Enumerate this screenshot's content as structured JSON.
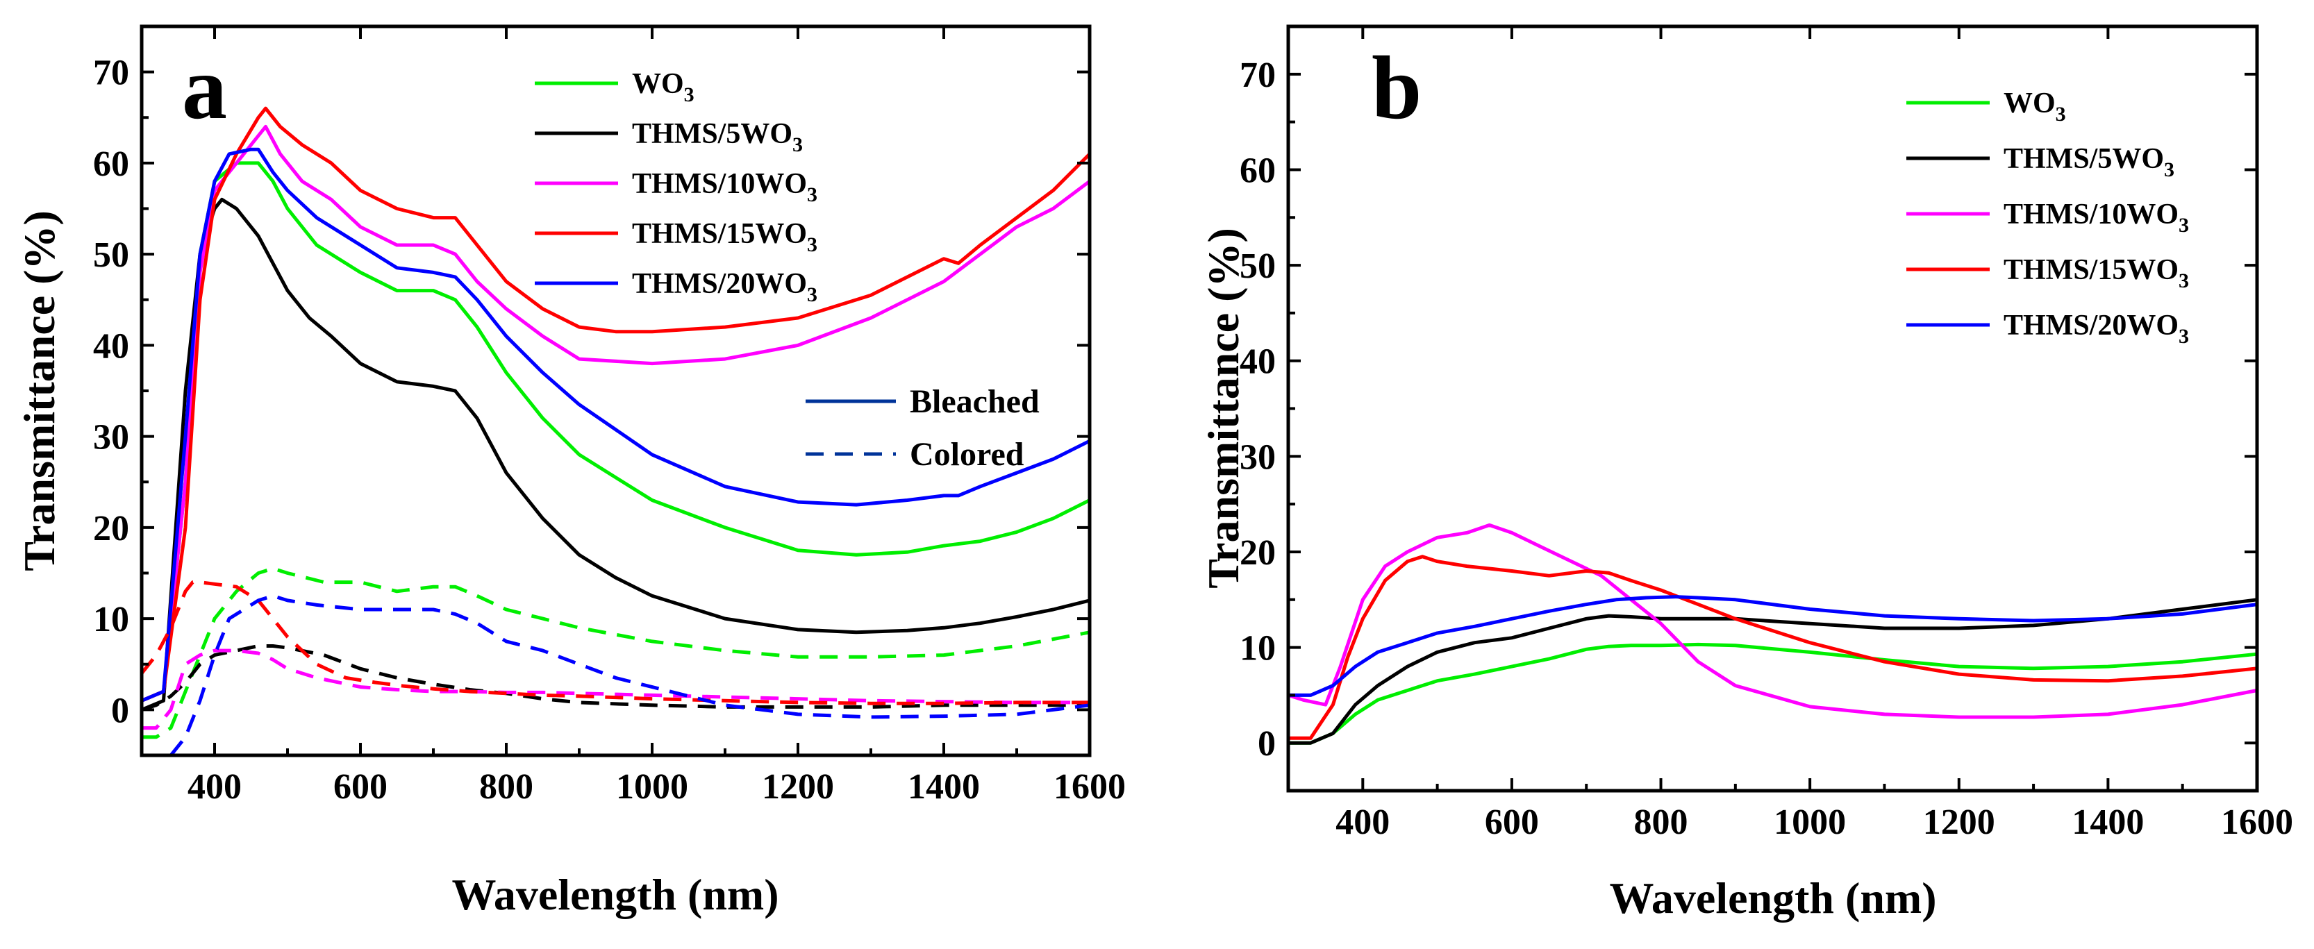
{
  "chart_data": [
    {
      "panel": "a",
      "type": "line",
      "xlabel": "Wavelength (nm)",
      "ylabel": "Transmittance (%)",
      "xlim": [
        300,
        1600
      ],
      "ylim": [
        -5,
        75
      ],
      "xticks": [
        400,
        600,
        800,
        1000,
        1200,
        1400,
        1600
      ],
      "yticks": [
        0,
        10,
        20,
        30,
        40,
        50,
        60,
        70
      ],
      "legend": [
        {
          "base": "WO",
          "sub": "3",
          "color": "#00ee00"
        },
        {
          "base": "THMS/5WO",
          "sub": "3",
          "color": "#000000"
        },
        {
          "base": "THMS/10WO",
          "sub": "3",
          "color": "#ff00ff"
        },
        {
          "base": "THMS/15WO",
          "sub": "3",
          "color": "#ff0000"
        },
        {
          "base": "THMS/20WO",
          "sub": "3",
          "color": "#0000ff"
        }
      ],
      "style_legend": [
        {
          "label": "Bleached",
          "style": "solid",
          "color": "#003399"
        },
        {
          "label": "Colored",
          "style": "dashed",
          "color": "#003399"
        }
      ],
      "series": [
        {
          "name": "WO3",
          "style": "solid",
          "color": "#00ee00",
          "x": [
            300,
            330,
            360,
            380,
            400,
            430,
            460,
            480,
            500,
            540,
            600,
            650,
            700,
            730,
            760,
            800,
            850,
            900,
            1000,
            1100,
            1200,
            1280,
            1350,
            1400,
            1450,
            1500,
            1550,
            1600
          ],
          "y": [
            1,
            2,
            25,
            50,
            58,
            60,
            60,
            58,
            55,
            51,
            48,
            46,
            46,
            45,
            42,
            37,
            32,
            28,
            23,
            20,
            17.5,
            17,
            17.3,
            18,
            18.5,
            19.5,
            21,
            23
          ]
        },
        {
          "name": "THMS/5WO3",
          "style": "solid",
          "color": "#000000",
          "x": [
            300,
            330,
            360,
            380,
            400,
            410,
            430,
            460,
            480,
            500,
            530,
            560,
            600,
            650,
            700,
            730,
            760,
            800,
            850,
            900,
            950,
            1000,
            1100,
            1200,
            1280,
            1350,
            1400,
            1450,
            1500,
            1550,
            1600
          ],
          "y": [
            0,
            1,
            35,
            50,
            55,
            56,
            55,
            52,
            49,
            46,
            43,
            41,
            38,
            36,
            35.5,
            35,
            32,
            26,
            21,
            17,
            14.5,
            12.5,
            10,
            8.8,
            8.5,
            8.7,
            9,
            9.5,
            10.2,
            11,
            12
          ]
        },
        {
          "name": "THMS/10WO3",
          "style": "solid",
          "color": "#ff00ff",
          "x": [
            300,
            330,
            360,
            380,
            400,
            430,
            460,
            470,
            490,
            520,
            560,
            600,
            650,
            700,
            730,
            760,
            800,
            850,
            900,
            1000,
            1100,
            1200,
            1300,
            1400,
            1450,
            1500,
            1550,
            1600
          ],
          "y": [
            1,
            2,
            25,
            48,
            57,
            60,
            63,
            64,
            61,
            58,
            56,
            53,
            51,
            51,
            50,
            47,
            44,
            41,
            38.5,
            38,
            38.5,
            40,
            43,
            47,
            50,
            53,
            55,
            58
          ]
        },
        {
          "name": "THMS/15WO3",
          "style": "solid",
          "color": "#ff0000",
          "x": [
            300,
            330,
            360,
            380,
            400,
            430,
            460,
            470,
            490,
            520,
            560,
            600,
            650,
            700,
            730,
            760,
            800,
            850,
            900,
            950,
            1000,
            1100,
            1200,
            1300,
            1400,
            1420,
            1450,
            1500,
            1550,
            1600
          ],
          "y": [
            1,
            2,
            20,
            45,
            56,
            61,
            65,
            66,
            64,
            62,
            60,
            57,
            55,
            54,
            54,
            51,
            47,
            44,
            42,
            41.5,
            41.5,
            42,
            43,
            45.5,
            49.5,
            49,
            51,
            54,
            57,
            61
          ]
        },
        {
          "name": "THMS/20WO3",
          "style": "solid",
          "color": "#0000ff",
          "x": [
            300,
            330,
            360,
            380,
            400,
            420,
            450,
            460,
            480,
            500,
            540,
            600,
            650,
            700,
            730,
            760,
            800,
            850,
            900,
            1000,
            1100,
            1200,
            1280,
            1350,
            1400,
            1420,
            1450,
            1500,
            1550,
            1600
          ],
          "y": [
            1,
            2,
            30,
            50,
            58,
            61,
            61.5,
            61.5,
            59,
            57,
            54,
            51,
            48.5,
            48,
            47.5,
            45,
            41,
            37,
            33.5,
            28,
            24.5,
            22.8,
            22.5,
            23,
            23.5,
            23.5,
            24.5,
            26,
            27.5,
            29.5
          ]
        },
        {
          "name": "WO3",
          "style": "dashed",
          "color": "#00ee00",
          "x": [
            300,
            320,
            340,
            360,
            380,
            400,
            430,
            460,
            480,
            500,
            550,
            600,
            650,
            700,
            730,
            760,
            800,
            850,
            900,
            1000,
            1100,
            1200,
            1300,
            1400,
            1500,
            1600
          ],
          "y": [
            -3,
            -3,
            -2,
            2,
            6,
            10,
            13,
            15,
            15.5,
            15,
            14,
            14,
            13,
            13.5,
            13.5,
            12.5,
            11,
            10,
            9,
            7.5,
            6.5,
            5.8,
            5.8,
            6,
            7,
            8.5
          ]
        },
        {
          "name": "THMS/5WO3",
          "style": "dashed",
          "color": "#000000",
          "x": [
            300,
            320,
            340,
            360,
            380,
            400,
            430,
            460,
            480,
            500,
            550,
            600,
            650,
            700,
            750,
            800,
            850,
            900,
            1000,
            1100,
            1200,
            1300,
            1400,
            1500,
            1600
          ],
          "y": [
            0,
            0.5,
            1.5,
            3,
            5,
            6,
            6.5,
            7,
            7,
            6.8,
            6,
            4.5,
            3.5,
            2.8,
            2.2,
            1.8,
            1.2,
            0.8,
            0.5,
            0.3,
            0.3,
            0.3,
            0.5,
            0.5,
            0.5
          ]
        },
        {
          "name": "THMS/10WO3",
          "style": "dashed",
          "color": "#ff00ff",
          "x": [
            300,
            320,
            340,
            360,
            380,
            400,
            430,
            460,
            480,
            500,
            540,
            600,
            650,
            700,
            750,
            800,
            850,
            900,
            1000,
            1100,
            1200,
            1300,
            1400,
            1500,
            1600
          ],
          "y": [
            -2,
            -2,
            0,
            5,
            6,
            6.5,
            6.5,
            6.2,
            5.5,
            4.5,
            3.5,
            2.5,
            2.2,
            2,
            2,
            1.9,
            1.9,
            1.8,
            1.6,
            1.4,
            1.2,
            1,
            0.9,
            0.8,
            0.8
          ]
        },
        {
          "name": "THMS/15WO3",
          "style": "dashed",
          "color": "#ff0000",
          "x": [
            300,
            320,
            340,
            360,
            370,
            380,
            400,
            430,
            460,
            500,
            540,
            580,
            620,
            660,
            700,
            750,
            800,
            850,
            900,
            1000,
            1100,
            1200,
            1300,
            1400,
            1500,
            1600
          ],
          "y": [
            4,
            6,
            9,
            13,
            14,
            14,
            13.8,
            13.5,
            12,
            8,
            5,
            3.5,
            3,
            2.6,
            2.3,
            2,
            1.8,
            1.6,
            1.5,
            1.2,
            1,
            0.8,
            0.7,
            0.7,
            0.8,
            0.8
          ]
        },
        {
          "name": "THMS/20WO3",
          "style": "dashed",
          "color": "#0000ff",
          "x": [
            300,
            320,
            340,
            360,
            380,
            400,
            420,
            440,
            460,
            480,
            500,
            540,
            600,
            650,
            700,
            730,
            760,
            800,
            850,
            900,
            950,
            1000,
            1050,
            1100,
            1200,
            1300,
            1400,
            1500,
            1550,
            1600
          ],
          "y": [
            -5,
            -5,
            -5,
            -3,
            1,
            6,
            10,
            11,
            12,
            12.5,
            12,
            11.5,
            11,
            11,
            11,
            10.5,
            9.5,
            7.5,
            6.5,
            5,
            3.5,
            2.5,
            1.5,
            0.5,
            -0.5,
            -0.8,
            -0.7,
            -0.5,
            0,
            0.5
          ]
        }
      ]
    },
    {
      "panel": "b",
      "type": "line",
      "xlabel": "Wavelength (nm)",
      "ylabel": "Transmittance (%)",
      "xlim": [
        300,
        1600
      ],
      "ylim": [
        -5,
        75
      ],
      "xticks": [
        400,
        600,
        800,
        1000,
        1200,
        1400,
        1600
      ],
      "yticks": [
        0,
        10,
        20,
        30,
        40,
        50,
        60,
        70
      ],
      "legend": [
        {
          "base": "WO",
          "sub": "3",
          "color": "#00ee00"
        },
        {
          "base": "THMS/5WO",
          "sub": "3",
          "color": "#000000"
        },
        {
          "base": "THMS/10WO",
          "sub": "3",
          "color": "#ff00ff"
        },
        {
          "base": "THMS/15WO",
          "sub": "3",
          "color": "#ff0000"
        },
        {
          "base": "THMS/20WO",
          "sub": "3",
          "color": "#0000ff"
        }
      ],
      "series": [
        {
          "name": "WO3",
          "style": "solid",
          "color": "#00ee00",
          "x": [
            300,
            330,
            360,
            390,
            420,
            460,
            500,
            550,
            600,
            650,
            700,
            730,
            760,
            800,
            850,
            900,
            1000,
            1100,
            1200,
            1300,
            1400,
            1500,
            1600
          ],
          "y": [
            0,
            0,
            1,
            3,
            4.5,
            5.5,
            6.5,
            7.2,
            8,
            8.8,
            9.8,
            10.1,
            10.2,
            10.2,
            10.3,
            10.2,
            9.5,
            8.7,
            8,
            7.8,
            8,
            8.5,
            9.3
          ]
        },
        {
          "name": "THMS/5WO3",
          "style": "solid",
          "color": "#000000",
          "x": [
            300,
            330,
            360,
            390,
            420,
            460,
            500,
            550,
            600,
            650,
            700,
            730,
            760,
            800,
            850,
            900,
            1000,
            1100,
            1200,
            1300,
            1400,
            1500,
            1600
          ],
          "y": [
            0,
            0,
            1,
            4,
            6,
            8,
            9.5,
            10.5,
            11,
            12,
            13,
            13.3,
            13.2,
            13,
            13,
            13,
            12.5,
            12,
            12,
            12.3,
            13,
            14,
            15
          ]
        },
        {
          "name": "THMS/10WO3",
          "style": "solid",
          "color": "#ff00ff",
          "x": [
            300,
            320,
            350,
            370,
            400,
            430,
            460,
            500,
            540,
            570,
            600,
            640,
            680,
            720,
            760,
            800,
            850,
            900,
            1000,
            1100,
            1200,
            1300,
            1400,
            1500,
            1600
          ],
          "y": [
            5,
            4.5,
            4,
            8,
            15,
            18.5,
            20,
            21.5,
            22,
            22.8,
            22,
            20.5,
            19,
            17.5,
            15,
            12.5,
            8.5,
            6,
            3.8,
            3,
            2.7,
            2.7,
            3,
            4,
            5.5
          ]
        },
        {
          "name": "THMS/15WO3",
          "style": "solid",
          "color": "#ff0000",
          "x": [
            300,
            330,
            360,
            380,
            400,
            430,
            460,
            480,
            500,
            540,
            600,
            650,
            700,
            730,
            760,
            800,
            850,
            900,
            1000,
            1100,
            1200,
            1300,
            1400,
            1500,
            1600
          ],
          "y": [
            0.5,
            0.5,
            4,
            9,
            13,
            17,
            19,
            19.5,
            19,
            18.5,
            18,
            17.5,
            18,
            17.8,
            17,
            16,
            14.5,
            13,
            10.5,
            8.5,
            7.2,
            6.6,
            6.5,
            7,
            7.8
          ]
        },
        {
          "name": "THMS/20WO3",
          "style": "solid",
          "color": "#0000ff",
          "x": [
            300,
            330,
            360,
            390,
            420,
            460,
            500,
            550,
            600,
            650,
            700,
            740,
            780,
            820,
            850,
            900,
            1000,
            1100,
            1200,
            1300,
            1400,
            1500,
            1600
          ],
          "y": [
            5,
            5,
            6,
            8,
            9.5,
            10.5,
            11.5,
            12.2,
            13,
            13.8,
            14.5,
            15,
            15.2,
            15.3,
            15.2,
            15,
            14,
            13.3,
            13,
            12.8,
            13,
            13.5,
            14.5
          ]
        }
      ]
    }
  ]
}
